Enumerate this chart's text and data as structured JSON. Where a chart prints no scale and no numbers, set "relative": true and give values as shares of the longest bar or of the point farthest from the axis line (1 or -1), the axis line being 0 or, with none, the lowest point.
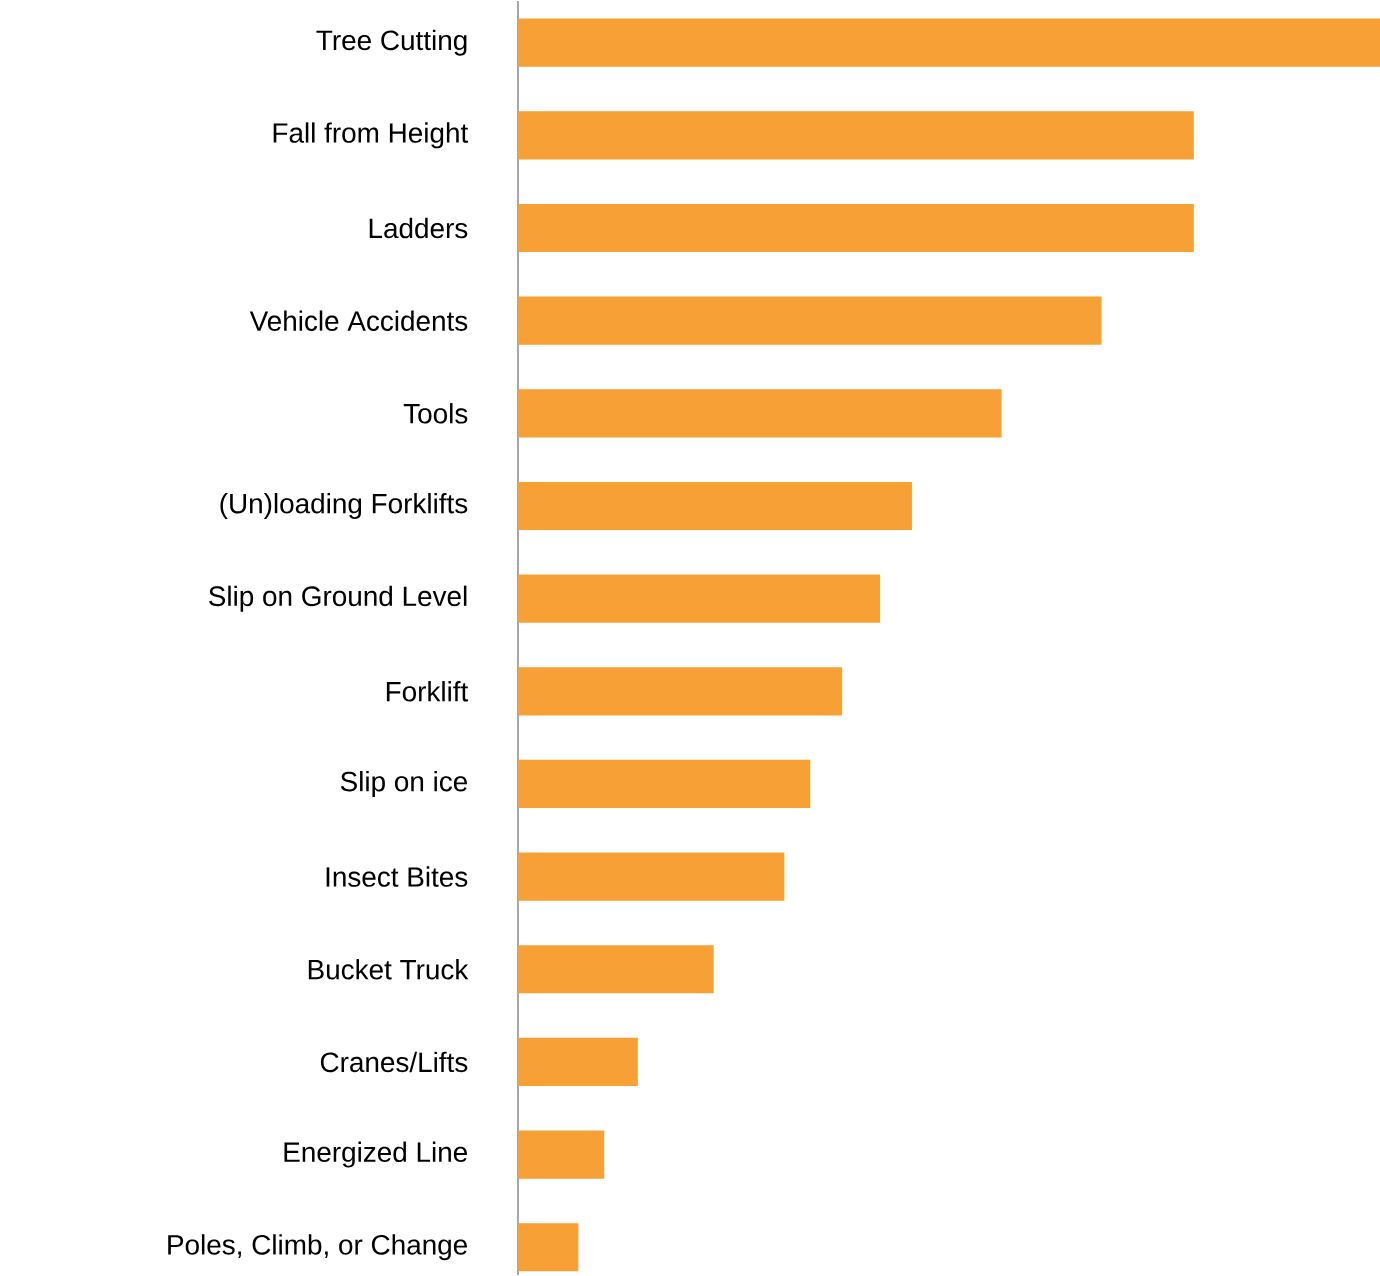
{
  "chart_data": {
    "type": "bar",
    "orientation": "horizontal",
    "relative": true,
    "color": "#f7a035",
    "categories": [
      "Tree Cutting",
      "Fall from Height",
      "Ladders",
      "Vehicle Accidents",
      "Tools",
      "(Un)loading Forklifts",
      "Slip on Ground Level",
      "Forklift",
      "Slip on ice",
      "Insect Bites",
      "Bucket Truck",
      "Cranes/Lifts",
      "Energized Line",
      "Poles, Climb, or Change"
    ],
    "values": [
      1,
      0.784,
      0.784,
      0.677,
      0.561,
      0.457,
      0.42,
      0.376,
      0.339,
      0.309,
      0.227,
      0.139,
      0.1,
      0.07
    ]
  }
}
